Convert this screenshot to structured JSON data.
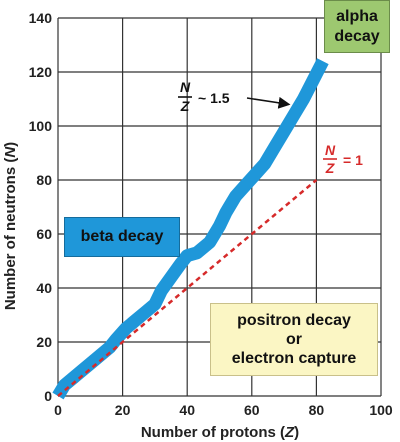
{
  "chart_data": {
    "type": "line",
    "xlabel_prefix": "Number of protons (",
    "xlabel_var": "Z",
    "xlabel_suffix": ")",
    "ylabel_prefix": "Number of neutrons (",
    "ylabel_var": "N",
    "ylabel_suffix": ")",
    "xlim": [
      0,
      100
    ],
    "ylim": [
      0,
      140
    ],
    "x_ticks": [
      "0",
      "20",
      "40",
      "60",
      "80",
      "100"
    ],
    "y_ticks": [
      "0",
      "20",
      "40",
      "60",
      "80",
      "100",
      "120",
      "140"
    ],
    "grid": true,
    "series": [
      {
        "style": "thick-band",
        "color": "#1f97d9",
        "x": [
          0,
          2,
          5,
          8,
          10,
          13,
          16,
          18,
          21,
          24,
          27,
          30,
          32,
          35,
          38,
          40,
          43,
          47,
          50,
          52,
          53,
          55,
          58,
          61,
          64,
          67,
          70,
          73,
          76,
          79,
          82
        ],
        "y": [
          0,
          4,
          7,
          10,
          12,
          15,
          18,
          21,
          25,
          28,
          31,
          34,
          39,
          44,
          49,
          52,
          53,
          57,
          63,
          68,
          70,
          74,
          78,
          82,
          86,
          92,
          98,
          104,
          110,
          117,
          124
        ]
      },
      {
        "style": "dashed",
        "color": "#d62a2a",
        "x": [
          0,
          80
        ],
        "y": [
          0,
          80
        ]
      }
    ],
    "annotations": {
      "nz_15": {
        "num": "N",
        "den": "Z",
        "text": "~ 1.5",
        "arrow_to": [
          74,
          108
        ]
      },
      "nz_1": {
        "num": "N",
        "den": "Z",
        "text": "= 1",
        "color": "#d62a2a"
      }
    },
    "regions": {
      "alpha": [
        "alpha",
        "decay"
      ],
      "beta": [
        "beta decay"
      ],
      "positron": [
        "positron decay",
        "or",
        "electron capture"
      ]
    }
  }
}
